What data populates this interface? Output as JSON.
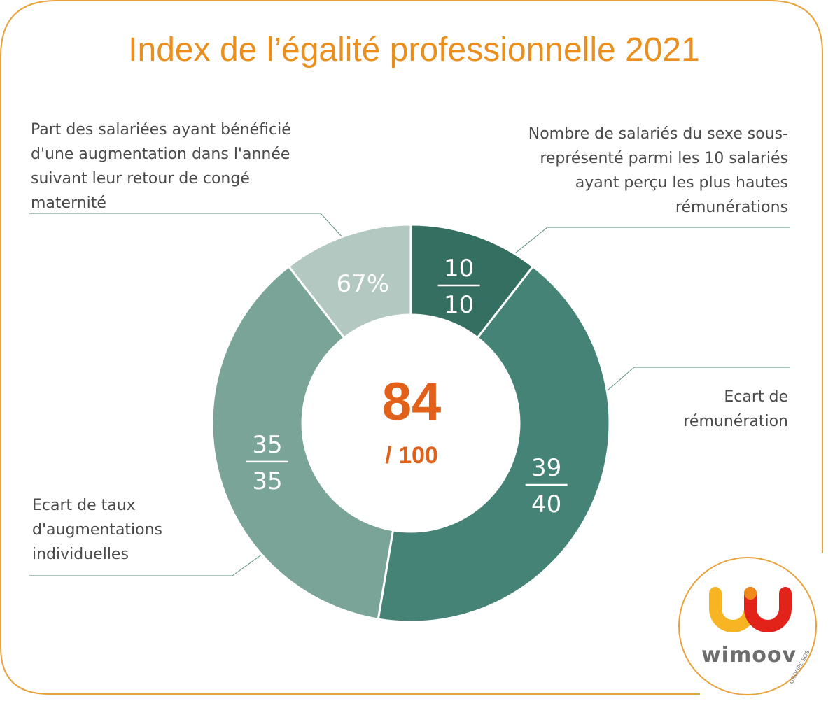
{
  "title": "Index de l’égalité professionnelle 2021",
  "chart_data": {
    "type": "donut",
    "title": "Index de l’égalité professionnelle 2021",
    "total": {
      "score": "84",
      "max": "/ 100"
    },
    "segments": [
      {
        "name": "Nombre de salariés du sexe sous-représenté parmi les 10 salariés ayant perçu les plus hautes rémunérations",
        "value": 10,
        "label_top": "10",
        "label_bottom": "10",
        "color": "#356f61"
      },
      {
        "name": "Ecart de rémunération",
        "value": 40,
        "label_top": "39",
        "label_bottom": "40",
        "color": "#458376"
      },
      {
        "name": "Ecart de taux d'augmentations individuelles",
        "value": 35,
        "label_top": "35",
        "label_bottom": "35",
        "color": "#7aa498"
      },
      {
        "name": "Part des salariées ayant bénéficié d'une augmentation dans l'année suivant leur retour de congé maternité",
        "value": 10,
        "label": "67%",
        "color": "#b3c8c0"
      }
    ]
  },
  "labels": {
    "top_left": "Part des salariées ayant bénéficié\nd'une augmentation dans l'année\nsuivant leur retour de congé\nmaternité",
    "top_right": "Nombre de salariés du sexe sous-\nreprésenté parmi les 10 salariés\nayant perçu les plus hautes\nrémunérations",
    "mid_right": "Ecart de\nrémunération",
    "bottom_left": "Ecart de taux\nd'augmentations\nindividuelles"
  },
  "logo": {
    "name": "wimoov",
    "tagline": "GROUPE SOS"
  },
  "colors": {
    "accent": "#ea8f1d",
    "score": "#e2611a",
    "frame": "#e9a23b",
    "leader": "#5a8f82"
  }
}
